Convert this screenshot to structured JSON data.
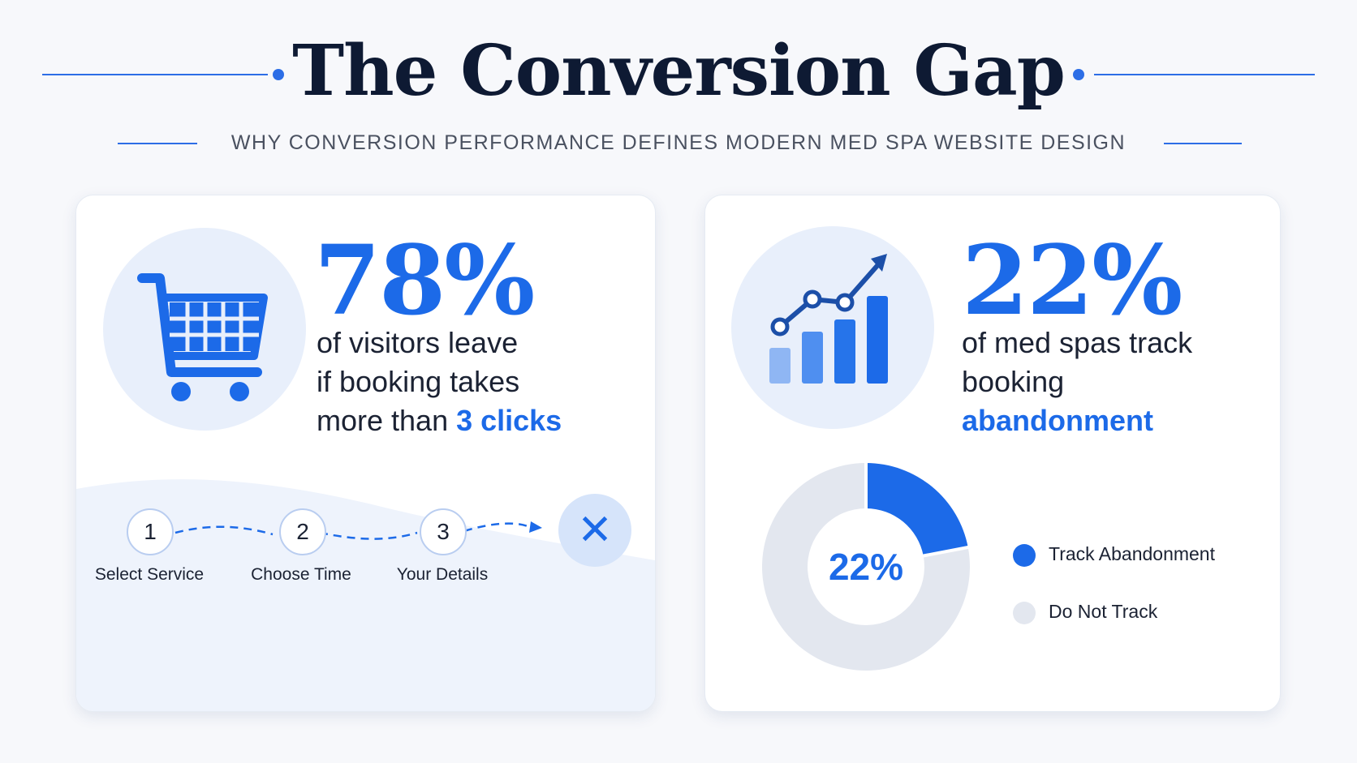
{
  "header": {
    "title": "The Conversion Gap",
    "subtitle": "WHY CONVERSION PERFORMANCE DEFINES MODERN MED SPA WEBSITE DESIGN"
  },
  "colors": {
    "accent": "#1c6ae8",
    "dark_text": "#0e1a33",
    "light_gray": "#e3e7ef",
    "icon_bg": "#e8effb"
  },
  "left_card": {
    "icon": "shopping-cart-icon",
    "stat": "78%",
    "text_line1": "of visitors leave",
    "text_line2": "if booking takes",
    "text_line3_prefix": "more than ",
    "text_line3_accent": "3 clicks",
    "steps": [
      {
        "number": "1",
        "label": "Select Service"
      },
      {
        "number": "2",
        "label": "Choose Time"
      },
      {
        "number": "3",
        "label": "Your Details"
      }
    ],
    "end_icon": "x-icon",
    "end_glyph": "✕"
  },
  "right_card": {
    "icon": "growth-chart-icon",
    "stat": "22%",
    "text_line1": "of med spas track",
    "text_line2": "booking",
    "text_line3_accent": "abandonment",
    "donut_center": "22%",
    "legend": [
      {
        "label": "Track Abandonment",
        "color": "#1c6ae8"
      },
      {
        "label": "Do Not Track",
        "color": "#e3e7ef"
      }
    ]
  },
  "chart_data": {
    "type": "pie",
    "categories": [
      "Track Abandonment",
      "Do Not Track"
    ],
    "values": [
      22,
      78
    ]
  }
}
